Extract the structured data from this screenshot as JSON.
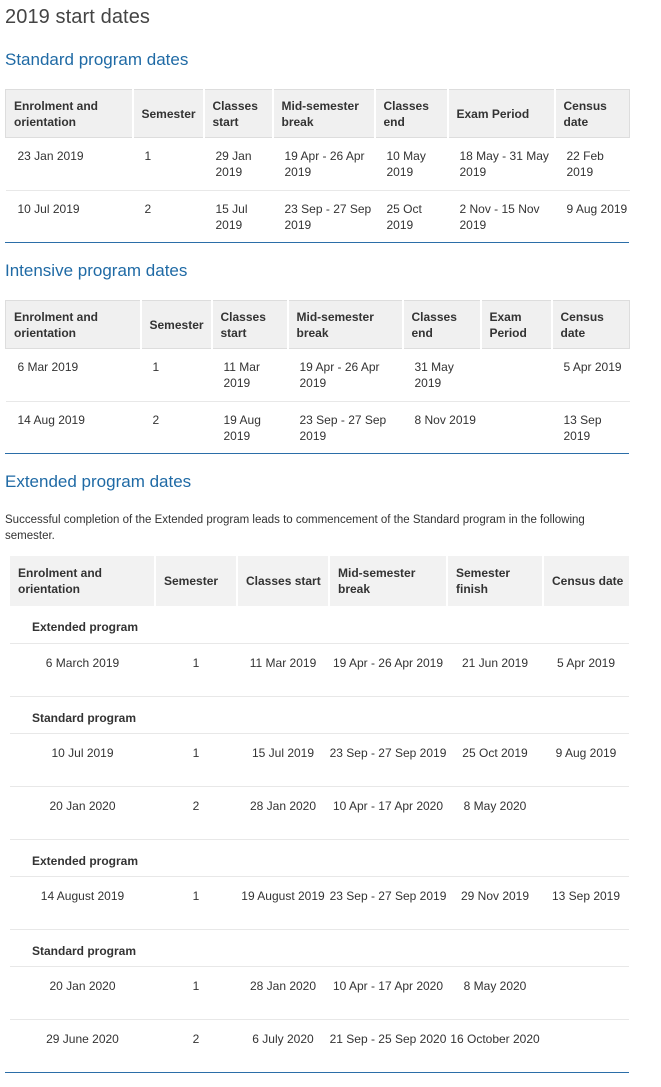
{
  "page": {
    "title": "2019 start dates"
  },
  "standard": {
    "heading": "Standard program dates",
    "headers": [
      "Enrolment and orientation",
      "Semester",
      "Classes start",
      "Mid-semester break",
      "Classes end",
      "Exam Period",
      "Census date"
    ],
    "rows": [
      [
        "23 Jan 2019",
        "1",
        "29 Jan 2019",
        "19 Apr - 26 Apr 2019",
        "10 May 2019",
        "18 May - 31 May 2019",
        "22 Feb 2019"
      ],
      [
        "10 Jul 2019",
        "2",
        "15 Jul 2019",
        "23 Sep - 27 Sep 2019",
        "25 Oct 2019",
        "2 Nov - 15 Nov 2019",
        "9 Aug 2019"
      ]
    ]
  },
  "intensive": {
    "heading": "Intensive program dates",
    "headers": [
      "Enrolment and orientation",
      "Semester",
      "Classes start",
      "Mid-semester break",
      "Classes end",
      "Exam Period",
      "Census date"
    ],
    "rows": [
      [
        "6 Mar 2019",
        "1",
        "11 Mar 2019",
        "19 Apr - 26 Apr 2019",
        "31 May 2019",
        "",
        "5 Apr 2019"
      ],
      [
        "14 Aug 2019",
        "2",
        "19 Aug 2019",
        "23 Sep - 27 Sep 2019",
        "8 Nov 2019",
        "",
        "13 Sep 2019"
      ]
    ]
  },
  "extended": {
    "heading": "Extended program dates",
    "note": "Successful completion of the Extended program leads to commencement of the Standard program in the following semester.",
    "headers": [
      "Enrolment and orientation",
      "Semester",
      "Classes start",
      "Mid-semester break",
      "Semester finish",
      "Census date"
    ],
    "sections": [
      {
        "label": "Extended program",
        "rows": [
          [
            "6 March 2019",
            "1",
            "11 Mar 2019",
            "19 Apr - 26 Apr 2019",
            "21 Jun 2019",
            "5 Apr 2019"
          ]
        ]
      },
      {
        "label": "Standard program",
        "rows": [
          [
            "10 Jul 2019",
            "1",
            "15 Jul 2019",
            "23 Sep - 27 Sep 2019",
            "25 Oct 2019",
            "9 Aug 2019"
          ],
          [
            "20 Jan 2020",
            "2",
            "28 Jan 2020",
            "10 Apr - 17 Apr 2020",
            "8 May 2020",
            ""
          ]
        ]
      },
      {
        "label": "Extended program",
        "rows": [
          [
            "14 August 2019",
            "1",
            "19 August 2019",
            "23 Sep - 27 Sep 2019",
            "29 Nov 2019",
            "13 Sep 2019"
          ]
        ]
      },
      {
        "label": "Standard program",
        "rows": [
          [
            "20 Jan 2020",
            "1",
            "28 Jan 2020",
            "10 Apr - 17 Apr 2020",
            "8 May 2020",
            ""
          ],
          [
            "29 June 2020",
            "2",
            "6 July 2020",
            "21 Sep - 25 Sep 2020",
            "16 October 2020",
            ""
          ]
        ]
      }
    ]
  }
}
